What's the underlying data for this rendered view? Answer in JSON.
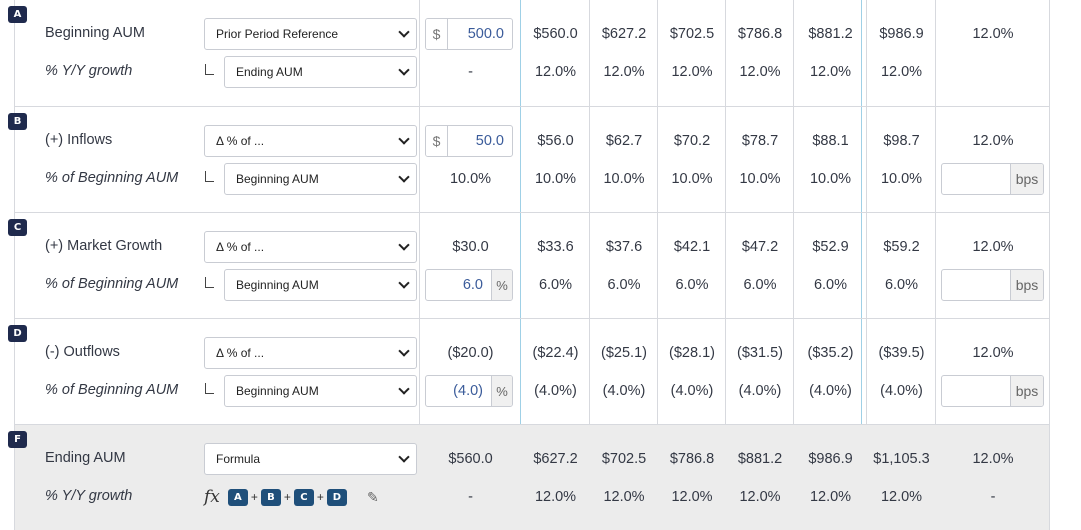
{
  "sections": [
    {
      "badge": "A",
      "label": "Beginning AUM",
      "sublabel": "% Y/Y growth",
      "dropdown1": "Prior Period Reference",
      "dropdown2": "Ending AUM",
      "base_prefix": "$",
      "base_value": "500.0",
      "base_sub": "-",
      "values": [
        "$560.0",
        "$627.2",
        "$702.5",
        "$786.8",
        "$881.2",
        "$986.9"
      ],
      "subvalues": [
        "12.0%",
        "12.0%",
        "12.0%",
        "12.0%",
        "12.0%",
        "12.0%"
      ],
      "growth": "12.0%",
      "growth_sub": ""
    },
    {
      "badge": "B",
      "label": "(+) Inflows",
      "sublabel": "% of Beginning AUM",
      "dropdown1": "Δ % of ...",
      "dropdown2": "Beginning AUM",
      "base_prefix": "$",
      "base_value": "50.0",
      "base_sub": "10.0%",
      "values": [
        "$56.0",
        "$62.7",
        "$70.2",
        "$78.7",
        "$88.1",
        "$98.7"
      ],
      "subvalues": [
        "10.0%",
        "10.0%",
        "10.0%",
        "10.0%",
        "10.0%",
        "10.0%"
      ],
      "growth": "12.0%",
      "growth_suffix": "bps"
    },
    {
      "badge": "C",
      "label": "(+) Market Growth",
      "sublabel": "% of Beginning AUM",
      "dropdown1": "Δ % of ...",
      "dropdown2": "Beginning AUM",
      "base_value": "$30.0",
      "base_input": "6.0",
      "base_suffix": "%",
      "values": [
        "$33.6",
        "$37.6",
        "$42.1",
        "$47.2",
        "$52.9",
        "$59.2"
      ],
      "subvalues": [
        "6.0%",
        "6.0%",
        "6.0%",
        "6.0%",
        "6.0%",
        "6.0%"
      ],
      "growth": "12.0%",
      "growth_suffix": "bps"
    },
    {
      "badge": "D",
      "label": "(-) Outflows",
      "sublabel": "% of Beginning AUM",
      "dropdown1": "Δ % of ...",
      "dropdown2": "Beginning AUM",
      "base_value": "($20.0)",
      "base_input": "(4.0)",
      "base_suffix": "%",
      "values": [
        "($22.4)",
        "($25.1)",
        "($28.1)",
        "($31.5)",
        "($35.2)",
        "($39.5)"
      ],
      "subvalues": [
        "(4.0%)",
        "(4.0%)",
        "(4.0%)",
        "(4.0%)",
        "(4.0%)",
        "(4.0%)"
      ],
      "growth": "12.0%",
      "growth_suffix": "bps"
    },
    {
      "badge": "F",
      "label": "Ending AUM",
      "sublabel": "% Y/Y growth",
      "dropdown1": "Formula",
      "formula_fx": "fx",
      "formula_tokens": [
        "A",
        "B",
        "C",
        "D"
      ],
      "formula_plus": "+",
      "base_value": "$560.0",
      "base_sub": "-",
      "values": [
        "$627.2",
        "$702.5",
        "$786.8",
        "$881.2",
        "$986.9",
        "$1,105.3"
      ],
      "subvalues": [
        "12.0%",
        "12.0%",
        "12.0%",
        "12.0%",
        "12.0%",
        "12.0%"
      ],
      "growth": "12.0%",
      "growth_sub": "-"
    }
  ],
  "colors": {
    "badge_bg": "#1f2a4d",
    "formula_token_bg": "#1f4f7a",
    "input_text": "#3a5b9a",
    "total_row_bg": "#ececec"
  }
}
